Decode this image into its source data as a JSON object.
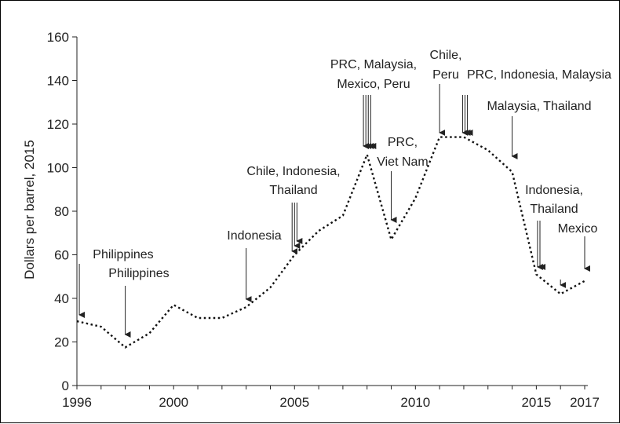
{
  "chart_data": {
    "type": "line",
    "title": "",
    "xlabel": "",
    "ylabel": "Dollars per barrel, 2015",
    "xlim": [
      1996,
      2017
    ],
    "ylim": [
      0,
      160
    ],
    "x_ticks": [
      1996,
      2000,
      2005,
      2010,
      2015,
      2017
    ],
    "y_ticks": [
      0,
      20,
      40,
      60,
      80,
      100,
      120,
      140,
      160
    ],
    "grid": false,
    "legend": "none",
    "line_style": "dotted",
    "series": [
      {
        "x": [
          1996,
          1997,
          1998,
          1999,
          2000,
          2001,
          2002,
          2003,
          2004,
          2005,
          2006,
          2007,
          2008,
          2009,
          2010,
          2011,
          2012,
          2013,
          2014,
          2015,
          2016,
          2017
        ],
        "y": [
          29.5,
          27,
          17.5,
          24,
          37,
          31,
          31,
          36,
          45,
          60,
          71,
          78,
          106,
          67,
          86,
          114,
          114,
          108,
          98,
          51,
          42,
          48
        ]
      }
    ],
    "annotations": [
      {
        "lines": [
          "Philippines"
        ],
        "arrow_x": [
          1996.1
        ]
      },
      {
        "lines": [
          "Philippines"
        ],
        "arrow_x": [
          1998.0
        ]
      },
      {
        "lines": [
          "Indonesia"
        ],
        "arrow_x": [
          2003.0
        ]
      },
      {
        "lines": [
          "Chile, Indonesia,",
          "Thailand"
        ],
        "arrow_x": [
          2004.9,
          2005.0,
          2005.1
        ]
      },
      {
        "lines": [
          "PRC, Malaysia,",
          "Mexico, Peru"
        ],
        "arrow_x": [
          2007.85,
          2007.95,
          2008.05,
          2008.15
        ]
      },
      {
        "lines": [
          "PRC,",
          "Viet Nam"
        ],
        "arrow_x": [
          2009.0
        ]
      },
      {
        "lines": [
          "Chile,",
          "Peru"
        ],
        "arrow_x": [
          2011.0
        ]
      },
      {
        "lines": [
          "PRC, Indonesia, Malaysia"
        ],
        "arrow_x": [
          2011.95,
          2012.05,
          2012.15
        ]
      },
      {
        "lines": [
          "Malaysia, Thailand"
        ],
        "arrow_x": [
          2014.0
        ]
      },
      {
        "lines": [
          "Indonesia,",
          "Thailand"
        ],
        "arrow_x": [
          2015.05,
          2015.15
        ]
      },
      {
        "lines": [
          "Mexico"
        ],
        "arrow_x": [
          2016.0,
          2017.0
        ]
      }
    ]
  }
}
